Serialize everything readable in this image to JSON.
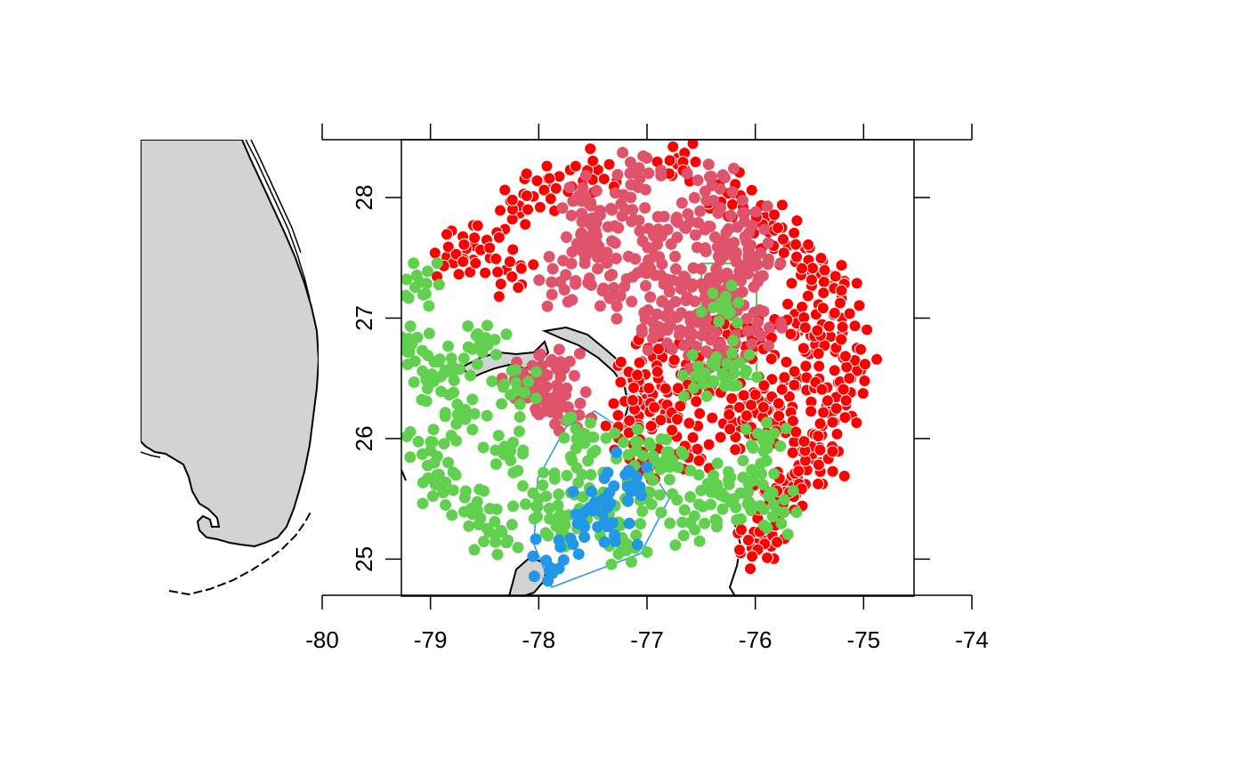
{
  "chart_data": {
    "type": "scatter",
    "title": "",
    "xlabel": "",
    "ylabel": "",
    "xlim": [
      -80,
      -74
    ],
    "ylim": [
      24.7,
      28.48
    ],
    "x_ticks": [
      "-80",
      "-79",
      "-78",
      "-77",
      "-76",
      "-75",
      "-74"
    ],
    "y_ticks": [
      "25",
      "26",
      "27",
      "28"
    ],
    "x_tick_values": [
      -80,
      -79,
      -78,
      -77,
      -76,
      -75,
      -74
    ],
    "y_tick_values": [
      25,
      26,
      27,
      28
    ],
    "grid": false,
    "legend": "none",
    "colors": {
      "land": "#d3d3d3",
      "coast": "#000000",
      "red": "#ff0000",
      "pink": "#df536b",
      "green": "#61d04f",
      "blue": "#2297e6"
    },
    "series": [
      {
        "color": "red",
        "values": [
          [
            -77.0,
            26.3
          ],
          [
            -76.6,
            25.9
          ],
          [
            -76.2,
            26.1
          ],
          [
            -75.6,
            26.5
          ],
          [
            -75.4,
            26.8
          ],
          [
            -75.2,
            26.4
          ],
          [
            -75.1,
            26.6
          ],
          [
            -75.5,
            27.4
          ],
          [
            -75.3,
            27.3
          ],
          [
            -76.0,
            26.8
          ],
          [
            -75.9,
            26.3
          ],
          [
            -75.7,
            25.6
          ],
          [
            -75.4,
            25.8
          ],
          [
            -75.9,
            25.2
          ],
          [
            -76.0,
            25.1
          ],
          [
            -77.9,
            28.1
          ],
          [
            -78.2,
            27.9
          ],
          [
            -78.6,
            27.6
          ],
          [
            -78.8,
            27.5
          ],
          [
            -78.3,
            27.4
          ],
          [
            -77.5,
            28.2
          ],
          [
            -76.7,
            28.3
          ],
          [
            -76.2,
            28.0
          ],
          [
            -75.9,
            27.8
          ],
          [
            -75.7,
            27.6
          ],
          [
            -76.9,
            26.7
          ],
          [
            -76.5,
            26.6
          ],
          [
            -76.3,
            26.9
          ],
          [
            -76.8,
            26.2
          ],
          [
            -77.2,
            26.1
          ],
          [
            -75.8,
            26.1
          ],
          [
            -75.3,
            26.2
          ],
          [
            -75.6,
            27.0
          ],
          [
            -75.2,
            27.0
          ],
          [
            -76.6,
            26.4
          ],
          [
            -77.1,
            26.5
          ],
          [
            -76.1,
            26.3
          ],
          [
            -75.5,
            25.9
          ],
          [
            -75.8,
            25.5
          ],
          [
            -77.0,
            25.8
          ]
        ]
      },
      {
        "color": "pink",
        "values": [
          [
            -77.5,
            27.8
          ],
          [
            -77.2,
            27.9
          ],
          [
            -76.9,
            27.7
          ],
          [
            -76.6,
            27.8
          ],
          [
            -76.3,
            27.6
          ],
          [
            -76.1,
            27.8
          ],
          [
            -77.4,
            27.5
          ],
          [
            -77.0,
            27.4
          ],
          [
            -76.7,
            27.3
          ],
          [
            -76.4,
            27.3
          ],
          [
            -76.8,
            27.1
          ],
          [
            -76.5,
            27.0
          ],
          [
            -76.2,
            27.2
          ],
          [
            -77.3,
            27.2
          ],
          [
            -76.9,
            26.9
          ],
          [
            -76.6,
            26.8
          ],
          [
            -76.3,
            26.7
          ],
          [
            -76.0,
            26.9
          ],
          [
            -77.6,
            27.6
          ],
          [
            -77.8,
            27.3
          ],
          [
            -78.0,
            26.4
          ],
          [
            -77.9,
            26.3
          ],
          [
            -78.1,
            26.5
          ],
          [
            -77.8,
            26.6
          ],
          [
            -77.7,
            26.2
          ],
          [
            -76.1,
            27.4
          ],
          [
            -76.4,
            28.1
          ],
          [
            -77.1,
            28.2
          ],
          [
            -77.6,
            28.0
          ],
          [
            -76.0,
            27.5
          ]
        ]
      },
      {
        "color": "green",
        "values": [
          [
            -79.2,
            26.8
          ],
          [
            -79.1,
            27.3
          ],
          [
            -79.0,
            26.5
          ],
          [
            -78.8,
            26.6
          ],
          [
            -78.7,
            26.2
          ],
          [
            -79.0,
            25.9
          ],
          [
            -78.9,
            25.6
          ],
          [
            -78.6,
            25.4
          ],
          [
            -78.4,
            25.2
          ],
          [
            -78.3,
            25.9
          ],
          [
            -78.0,
            25.5
          ],
          [
            -77.8,
            25.3
          ],
          [
            -77.6,
            25.7
          ],
          [
            -77.4,
            25.4
          ],
          [
            -77.2,
            25.1
          ],
          [
            -77.0,
            25.5
          ],
          [
            -76.8,
            25.8
          ],
          [
            -76.6,
            25.3
          ],
          [
            -76.4,
            25.6
          ],
          [
            -76.2,
            25.5
          ],
          [
            -76.0,
            25.7
          ],
          [
            -75.9,
            26.0
          ],
          [
            -75.8,
            25.4
          ],
          [
            -78.5,
            26.8
          ],
          [
            -78.2,
            26.4
          ],
          [
            -77.6,
            26.0
          ],
          [
            -77.1,
            25.9
          ],
          [
            -76.5,
            26.5
          ],
          [
            -76.3,
            27.1
          ],
          [
            -76.2,
            26.6
          ]
        ]
      },
      {
        "color": "blue",
        "values": [
          [
            -77.9,
            24.9
          ],
          [
            -77.8,
            25.1
          ],
          [
            -77.6,
            25.3
          ],
          [
            -77.4,
            25.5
          ],
          [
            -77.2,
            25.7
          ],
          [
            -77.5,
            25.4
          ],
          [
            -77.3,
            25.2
          ],
          [
            -77.1,
            25.6
          ]
        ]
      }
    ]
  }
}
